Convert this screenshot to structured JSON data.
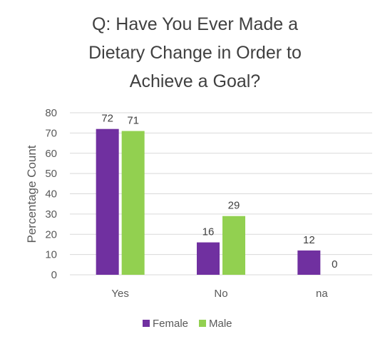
{
  "chart_data": {
    "type": "bar",
    "title_lines": [
      "Q: Have You Ever Made a",
      "Dietary Change in Order to",
      "Achieve a Goal?"
    ],
    "title": "Q: Have You Ever Made a Dietary Change in Order to Achieve a Goal?",
    "xlabel": "",
    "ylabel": "Percentage Count",
    "ylim": [
      0,
      80
    ],
    "yticks": [
      0,
      10,
      20,
      30,
      40,
      50,
      60,
      70,
      80
    ],
    "categories": [
      "Yes",
      "No",
      "na"
    ],
    "series": [
      {
        "name": "Female",
        "values": [
          72,
          16,
          12
        ],
        "color": "#7030A0"
      },
      {
        "name": "Male",
        "values": [
          71,
          29,
          0
        ],
        "color": "#92D050"
      }
    ],
    "data_labels": true,
    "grid": true,
    "legend": "bottom"
  }
}
